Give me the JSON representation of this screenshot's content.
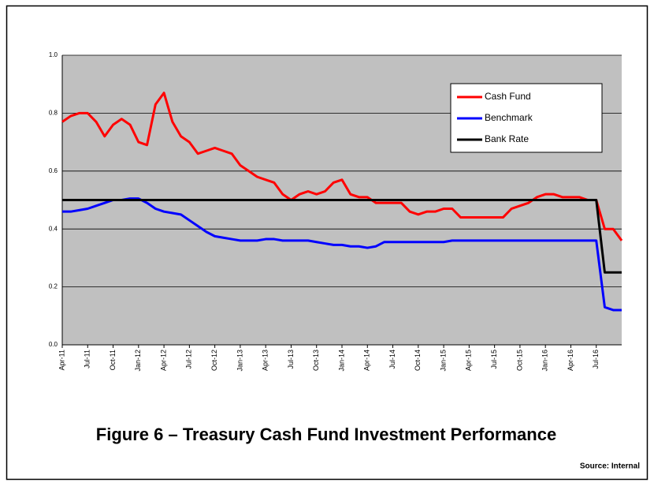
{
  "chart_data": {
    "type": "line",
    "title": "Figure 6 – Treasury Cash Fund Investment Performance",
    "source": "Source: Internal",
    "categories": [
      "Apr-11",
      null,
      null,
      "Jul-11",
      null,
      null,
      "Oct-11",
      null,
      null,
      "Jan-12",
      null,
      null,
      "Apr-12",
      null,
      null,
      "Jul-12",
      null,
      null,
      "Oct-12",
      null,
      null,
      "Jan-13",
      null,
      null,
      "Apr-13",
      null,
      null,
      "Jul-13",
      null,
      null,
      "Oct-13",
      null,
      null,
      "Jan-14",
      null,
      null,
      "Apr-14",
      null,
      null,
      "Jul-14",
      null,
      null,
      "Oct-14",
      null,
      null,
      "Jan-15",
      null,
      null,
      "Apr-15",
      null,
      null,
      "Jul-15",
      null,
      null,
      "Oct-15",
      null,
      null,
      "Jan-16",
      null,
      null,
      "Apr-16",
      null,
      null,
      "Jul-16",
      null,
      null,
      null
    ],
    "series": [
      {
        "name": "Cash Fund",
        "color": "#ff0000",
        "values": [
          0.77,
          0.79,
          0.8,
          0.8,
          0.77,
          0.72,
          0.76,
          0.78,
          0.76,
          0.7,
          0.69,
          0.83,
          0.87,
          0.77,
          0.72,
          0.7,
          0.66,
          0.67,
          0.68,
          0.67,
          0.66,
          0.62,
          0.6,
          0.58,
          0.57,
          0.56,
          0.52,
          0.5,
          0.52,
          0.53,
          0.52,
          0.53,
          0.56,
          0.57,
          0.52,
          0.51,
          0.51,
          0.49,
          0.49,
          0.49,
          0.49,
          0.46,
          0.45,
          0.46,
          0.46,
          0.47,
          0.47,
          0.44,
          0.44,
          0.44,
          0.44,
          0.44,
          0.44,
          0.47,
          0.48,
          0.49,
          0.51,
          0.52,
          0.52,
          0.51,
          0.51,
          0.51,
          0.5,
          0.5,
          0.4,
          0.4,
          0.36
        ]
      },
      {
        "name": "Benchmark",
        "color": "#0000ff",
        "values": [
          0.46,
          0.46,
          0.465,
          0.47,
          0.48,
          0.49,
          0.5,
          0.5,
          0.505,
          0.505,
          0.49,
          0.47,
          0.46,
          0.455,
          0.45,
          0.43,
          0.41,
          0.39,
          0.375,
          0.37,
          0.365,
          0.36,
          0.36,
          0.36,
          0.365,
          0.365,
          0.36,
          0.36,
          0.36,
          0.36,
          0.355,
          0.35,
          0.345,
          0.345,
          0.34,
          0.34,
          0.335,
          0.34,
          0.355,
          0.355,
          0.355,
          0.355,
          0.355,
          0.355,
          0.355,
          0.355,
          0.36,
          0.36,
          0.36,
          0.36,
          0.36,
          0.36,
          0.36,
          0.36,
          0.36,
          0.36,
          0.36,
          0.36,
          0.36,
          0.36,
          0.36,
          0.36,
          0.36,
          0.36,
          0.13,
          0.12,
          0.12
        ]
      },
      {
        "name": "Bank Rate",
        "color": "#000000",
        "values": [
          0.5,
          0.5,
          0.5,
          0.5,
          0.5,
          0.5,
          0.5,
          0.5,
          0.5,
          0.5,
          0.5,
          0.5,
          0.5,
          0.5,
          0.5,
          0.5,
          0.5,
          0.5,
          0.5,
          0.5,
          0.5,
          0.5,
          0.5,
          0.5,
          0.5,
          0.5,
          0.5,
          0.5,
          0.5,
          0.5,
          0.5,
          0.5,
          0.5,
          0.5,
          0.5,
          0.5,
          0.5,
          0.5,
          0.5,
          0.5,
          0.5,
          0.5,
          0.5,
          0.5,
          0.5,
          0.5,
          0.5,
          0.5,
          0.5,
          0.5,
          0.5,
          0.5,
          0.5,
          0.5,
          0.5,
          0.5,
          0.5,
          0.5,
          0.5,
          0.5,
          0.5,
          0.5,
          0.5,
          0.5,
          0.25,
          0.25,
          0.25
        ]
      }
    ],
    "ylim": [
      0,
      1
    ],
    "yticks": [
      {
        "value": 0,
        "label": "0.0"
      },
      0.2,
      0.4,
      0.6,
      0.8,
      {
        "value": 1,
        "label": "1.0"
      }
    ],
    "grid": true,
    "legend": "upper right",
    "plot_background": "#c0c0c0"
  }
}
